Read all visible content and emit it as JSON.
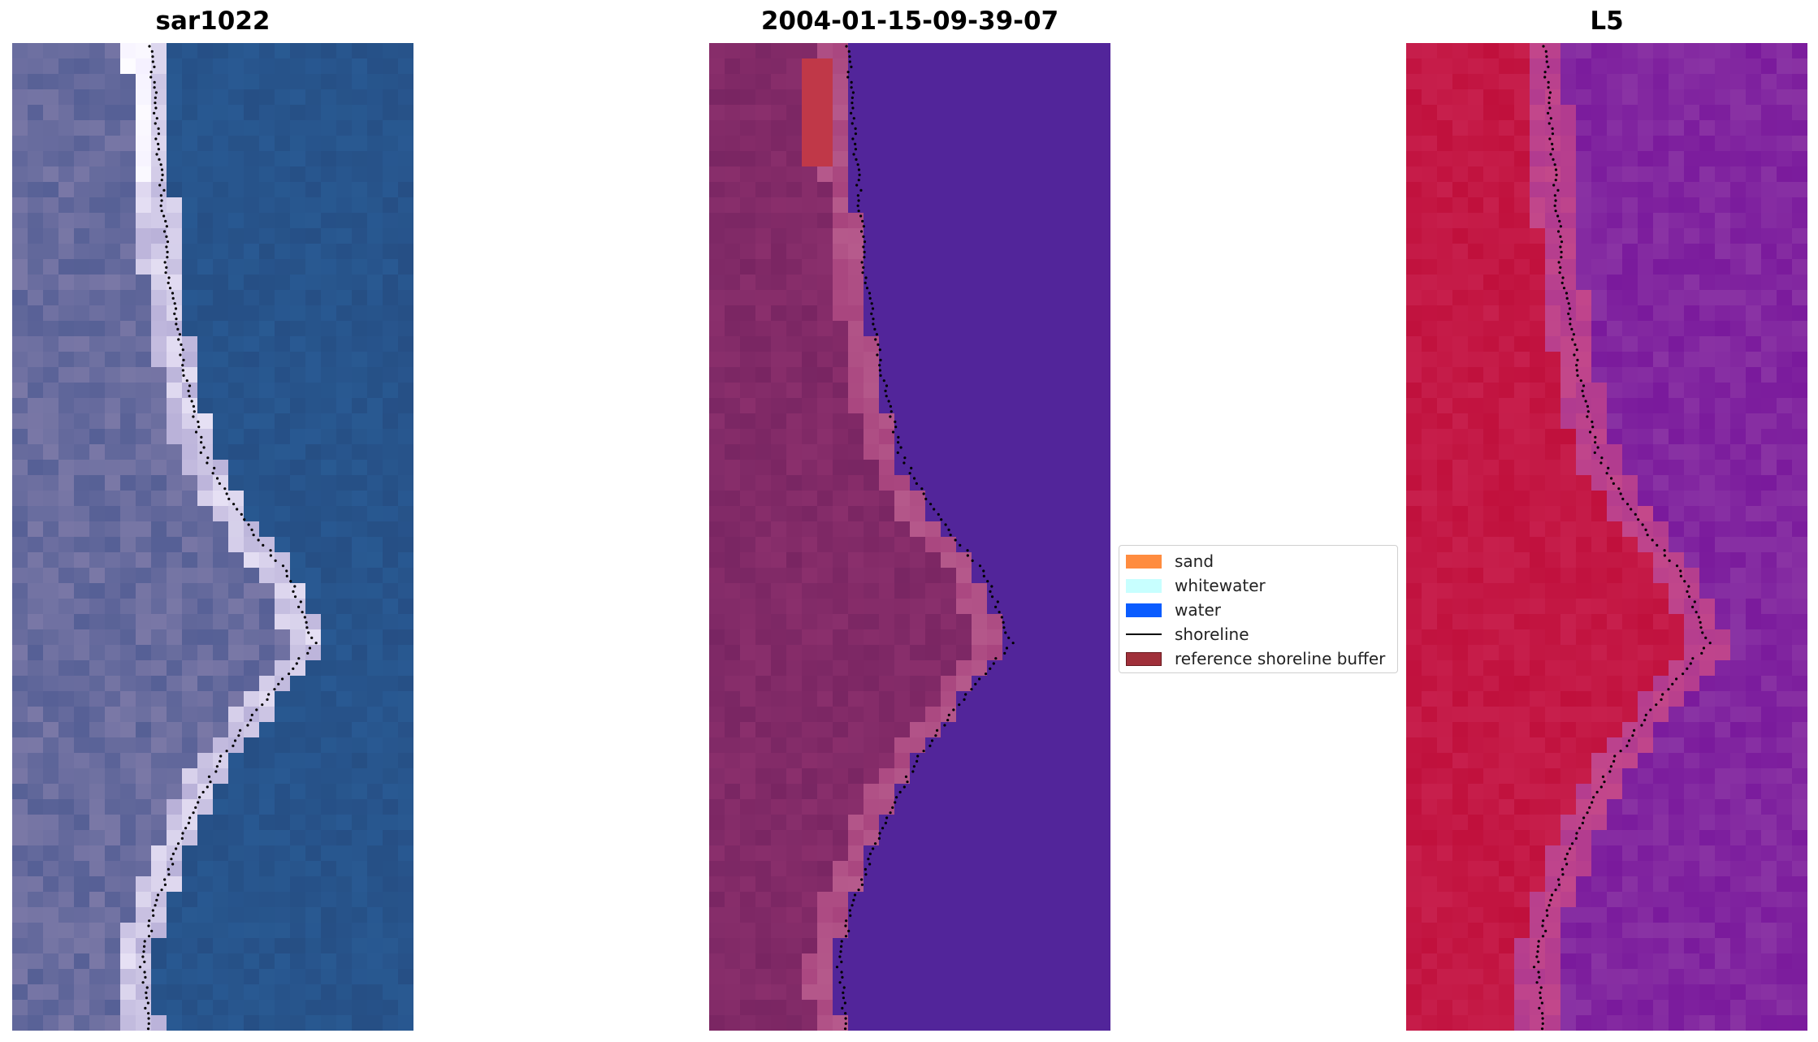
{
  "panels": [
    {
      "id": "rgb",
      "title": "sar1022"
    },
    {
      "id": "class",
      "title": "2004-01-15-09-39-07"
    },
    {
      "id": "index",
      "title": "L5"
    }
  ],
  "legend": {
    "items": [
      {
        "label": "sand",
        "type": "patch",
        "color": "#ff8c3f"
      },
      {
        "label": "whitewater",
        "type": "patch",
        "color": "#c8ffff"
      },
      {
        "label": "water",
        "type": "patch",
        "color": "#0a5cff"
      },
      {
        "label": "shoreline",
        "type": "line",
        "color": "#000000"
      },
      {
        "label": "reference shoreline buffer",
        "type": "patch",
        "color": "#a0303a"
      }
    ]
  },
  "colors": {
    "rgb_water": "#2a5e98",
    "rgb_beach": "#8f86b0",
    "class_sand": "#8a2f6c",
    "class_water": "#52259a",
    "index_land": "#c0103c",
    "index_water": "#7a1a9c"
  }
}
